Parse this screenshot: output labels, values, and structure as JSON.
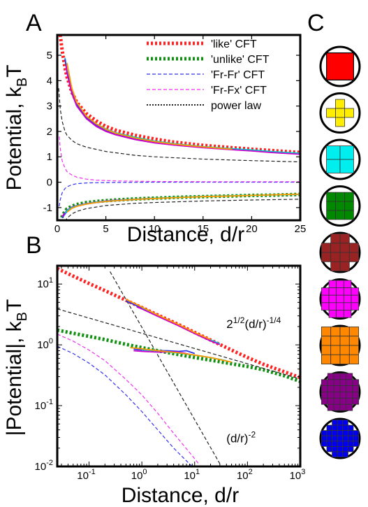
{
  "panels": {
    "A": "A",
    "B": "B",
    "C": "C"
  },
  "chart_data": [
    {
      "id": "A",
      "type": "line",
      "xlabel": "Distance, d/r",
      "ylabel": "Potential, k",
      "ylabel_sub": "B",
      "ylabel_tail": "T",
      "xlim": [
        0,
        25
      ],
      "ylim": [
        -1.5,
        5.8
      ],
      "xticks": [
        0,
        5,
        10,
        15,
        20,
        25
      ],
      "yticks": [
        -1,
        0,
        1,
        2,
        3,
        4,
        5
      ],
      "legend_position": "top-right",
      "legend": [
        {
          "label": "'like' CFT",
          "color": "#ff2020",
          "style": "dotted-thick"
        },
        {
          "label": "'unlike' CFT",
          "color": "#109010",
          "style": "dotted-thick"
        },
        {
          "label": "'Fr-Fr' CFT",
          "color": "#3333ee",
          "style": "dashed"
        },
        {
          "label": "'Fr-Fx' CFT",
          "color": "#ee33ee",
          "style": "dashed"
        },
        {
          "label": "power law",
          "color": "#222222",
          "style": "dotted"
        }
      ],
      "series": [
        {
          "name": "'like' CFT",
          "color": "#ff2020",
          "style": "dotted-thick",
          "x": [
            0.3,
            0.5,
            0.8,
            1,
            1.5,
            2,
            3,
            4,
            5,
            6,
            8,
            10,
            12,
            15,
            18,
            20,
            22,
            25
          ],
          "y": [
            5.8,
            5.2,
            4.5,
            4.15,
            3.55,
            3.15,
            2.7,
            2.42,
            2.2,
            2.05,
            1.85,
            1.7,
            1.58,
            1.45,
            1.36,
            1.3,
            1.25,
            1.17
          ]
        },
        {
          "name": "'unlike' CFT",
          "color": "#109010",
          "style": "dotted-thick",
          "x": [
            0.3,
            0.5,
            0.8,
            1,
            1.5,
            2,
            3,
            4,
            5,
            6,
            8,
            10,
            12,
            15,
            18,
            20,
            22,
            25
          ],
          "y": [
            -1.55,
            -1.35,
            -1.15,
            -1.05,
            -0.95,
            -0.88,
            -0.8,
            -0.76,
            -0.73,
            -0.7,
            -0.66,
            -0.63,
            -0.6,
            -0.57,
            -0.54,
            -0.52,
            -0.51,
            -0.48
          ]
        },
        {
          "name": "'Fr-Fr' CFT",
          "color": "#3333ee",
          "style": "dashed",
          "x": [
            0.2,
            0.3,
            0.5,
            0.8,
            1,
            1.5,
            2,
            3,
            4,
            6,
            10,
            15,
            20,
            25
          ],
          "y": [
            -0.95,
            -0.7,
            -0.42,
            -0.25,
            -0.18,
            -0.1,
            -0.06,
            -0.03,
            -0.02,
            -0.01,
            0,
            0,
            0,
            0
          ]
        },
        {
          "name": "'Fr-Fx' CFT",
          "color": "#ee33ee",
          "style": "dashed",
          "x": [
            0.2,
            0.3,
            0.5,
            0.8,
            1,
            1.5,
            2,
            3,
            4,
            6,
            10,
            15,
            20,
            25
          ],
          "y": [
            1.8,
            1.35,
            0.85,
            0.55,
            0.42,
            0.28,
            0.2,
            0.12,
            0.08,
            0.05,
            0.03,
            0.02,
            0.02,
            0.02
          ]
        },
        {
          "name": "power law",
          "color": "#222222",
          "style": "dashed",
          "x": [
            0.15,
            0.3,
            0.5,
            0.8,
            1,
            1.5,
            2,
            3,
            5,
            8,
            10,
            15,
            20,
            25
          ],
          "y": [
            3.7,
            2.9,
            2.4,
            2.0,
            1.85,
            1.65,
            1.52,
            1.38,
            1.21,
            1.06,
            1.0,
            0.91,
            0.85,
            0.8
          ]
        },
        {
          "name": "power law",
          "color": "#222222",
          "style": "dashed",
          "x": [
            0.8,
            1,
            1.5,
            2,
            3,
            5,
            8,
            10,
            15,
            20,
            25
          ],
          "y": [
            -1.55,
            -1.42,
            -1.25,
            -1.15,
            -1.04,
            -0.92,
            -0.83,
            -0.8,
            -0.74,
            -0.7,
            -0.67
          ]
        },
        {
          "name": "",
          "color": "#00cccc",
          "style": "solid",
          "x": [
            0.8,
            1,
            1.5,
            2,
            3,
            4,
            5,
            6,
            8,
            10,
            12,
            15,
            18,
            20,
            22,
            25
          ],
          "y": [
            4.9,
            4.4,
            3.6,
            3.1,
            2.6,
            2.3,
            2.1,
            1.95,
            1.77,
            1.62,
            1.52,
            1.4,
            1.32,
            1.27,
            1.21,
            1.14
          ]
        },
        {
          "name": "",
          "color": "#3333ee",
          "style": "solid",
          "x": [
            0.8,
            1,
            1.5,
            2,
            3,
            4,
            5,
            6,
            8,
            10,
            12,
            15
          ],
          "y": [
            4.85,
            4.35,
            3.55,
            3.05,
            2.55,
            2.25,
            2.05,
            1.9,
            1.72,
            1.58,
            1.48,
            1.37
          ]
        },
        {
          "name": "",
          "color": "#cc00cc",
          "style": "solid",
          "x": [
            0.9,
            1,
            1.5,
            2,
            3,
            4,
            5,
            6,
            8,
            10,
            12,
            15,
            18,
            20,
            22,
            25
          ],
          "y": [
            4.6,
            4.3,
            3.5,
            3.0,
            2.5,
            2.2,
            2.0,
            1.87,
            1.68,
            1.55,
            1.46,
            1.36,
            1.28,
            1.23,
            1.17,
            1.1
          ]
        },
        {
          "name": "",
          "color": "#ff9900",
          "style": "solid",
          "x": [
            1,
            1.5,
            2,
            3,
            4,
            5,
            6,
            8,
            10,
            12,
            15,
            18
          ],
          "y": [
            4.7,
            3.7,
            3.15,
            2.6,
            2.3,
            2.08,
            1.93,
            1.74,
            1.6,
            1.5,
            1.39,
            1.3
          ]
        },
        {
          "name": "",
          "color": "#3333ee",
          "style": "solid",
          "x": [
            0.5,
            0.8,
            1,
            1.5,
            2,
            3,
            4,
            5,
            6,
            8,
            10
          ],
          "y": [
            -1.4,
            -1.25,
            -1.15,
            -1.02,
            -0.95,
            -0.86,
            -0.8,
            -0.76,
            -0.73,
            -0.68,
            -0.64
          ]
        },
        {
          "name": "",
          "color": "#cc00cc",
          "style": "solid",
          "x": [
            0.5,
            0.8,
            1,
            1.5,
            2,
            3,
            4,
            5,
            6,
            8,
            10
          ],
          "y": [
            -1.35,
            -1.2,
            -1.1,
            -0.98,
            -0.92,
            -0.84,
            -0.78,
            -0.74,
            -0.71,
            -0.67,
            -0.63
          ]
        },
        {
          "name": "",
          "color": "#00cccc",
          "style": "solid",
          "x": [
            0.8,
            1,
            1.5,
            2,
            3,
            4,
            5,
            6,
            8,
            10,
            12,
            15,
            18,
            20,
            22,
            25
          ],
          "y": [
            -1.22,
            -1.12,
            -1.0,
            -0.93,
            -0.85,
            -0.79,
            -0.75,
            -0.72,
            -0.67,
            -0.63,
            -0.6,
            -0.56,
            -0.53,
            -0.52,
            -0.5,
            -0.48
          ]
        },
        {
          "name": "",
          "color": "#ff9900",
          "style": "solid",
          "x": [
            1,
            1.5,
            2,
            3,
            4,
            5,
            6,
            8,
            10,
            12,
            15,
            18,
            20,
            22,
            25
          ],
          "y": [
            -1.18,
            -1.03,
            -0.95,
            -0.86,
            -0.8,
            -0.76,
            -0.73,
            -0.68,
            -0.64,
            -0.61,
            -0.57,
            -0.54,
            -0.52,
            -0.5,
            -0.47
          ]
        }
      ]
    },
    {
      "id": "B",
      "type": "line",
      "xlabel": "Distance, d/r",
      "ylabel": "|Potential|, k",
      "ylabel_sub": "B",
      "ylabel_tail": "T",
      "xscale": "log",
      "yscale": "log",
      "xlim": [
        0.025,
        1000
      ],
      "ylim": [
        0.01,
        20
      ],
      "xtick_exponents": [
        -1,
        0,
        1,
        2,
        3
      ],
      "ytick_exponents": [
        -2,
        -1,
        0,
        1
      ],
      "annotations": [
        {
          "text_base": "2",
          "text_sup": "1/2",
          "text_mid": "(d/r)",
          "text_sup2": "-1/4",
          "x": 40,
          "y": 1.9
        },
        {
          "text_base": "(d/r)",
          "text_sup": "-2",
          "x": 40,
          "y": 0.025
        }
      ],
      "series": [
        {
          "name": "'like' CFT",
          "color": "#ff2020",
          "style": "dotted-thick",
          "x": [
            0.025,
            0.05,
            0.1,
            0.2,
            0.5,
            1,
            2,
            5,
            10,
            20,
            50,
            100,
            200,
            500,
            1000
          ],
          "y": [
            18,
            13.5,
            10.2,
            7.8,
            5.4,
            4.1,
            3.1,
            2.15,
            1.6,
            1.2,
            0.82,
            0.62,
            0.48,
            0.36,
            0.29
          ]
        },
        {
          "name": "'unlike' CFT",
          "color": "#109010",
          "style": "dotted-thick",
          "x": [
            0.025,
            0.05,
            0.1,
            0.2,
            0.5,
            1,
            2,
            5,
            10,
            20,
            50,
            100,
            200,
            500,
            1000
          ],
          "y": [
            1.75,
            1.55,
            1.38,
            1.22,
            1.02,
            0.9,
            0.8,
            0.69,
            0.62,
            0.56,
            0.49,
            0.44,
            0.39,
            0.31,
            0.25
          ]
        },
        {
          "name": "'Fr-Fr' CFT",
          "color": "#3333ee",
          "style": "dashed",
          "x": [
            0.025,
            0.05,
            0.1,
            0.2,
            0.5,
            1,
            2,
            4,
            8,
            12
          ],
          "y": [
            0.95,
            0.72,
            0.5,
            0.32,
            0.15,
            0.08,
            0.04,
            0.02,
            0.011,
            0.008
          ]
        },
        {
          "name": "'Fr-Fx' CFT",
          "color": "#ee33ee",
          "style": "dashed",
          "x": [
            0.025,
            0.05,
            0.1,
            0.2,
            0.5,
            1,
            2,
            4,
            8,
            12
          ],
          "y": [
            1.5,
            1.15,
            0.82,
            0.55,
            0.27,
            0.15,
            0.075,
            0.035,
            0.017,
            0.011
          ]
        },
        {
          "name": "power law",
          "color": "#222222",
          "style": "dashed",
          "x": [
            0.025,
            1000
          ],
          "y": [
            3.9,
            0.275
          ]
        },
        {
          "name": "power law",
          "color": "#222222",
          "style": "dashed",
          "x": [
            0.25,
            30
          ],
          "y": [
            16,
            0.0111
          ]
        },
        {
          "name": "",
          "color": "#3333ee",
          "style": "solid",
          "x": [
            0.5,
            1,
            2,
            5,
            10,
            15
          ],
          "y": [
            5.3,
            4.0,
            3.0,
            2.1,
            1.55,
            1.35
          ]
        },
        {
          "name": "",
          "color": "#00cccc",
          "style": "solid",
          "x": [
            1,
            2,
            5,
            10,
            20,
            30
          ],
          "y": [
            4.1,
            3.05,
            2.12,
            1.58,
            1.2,
            1.05
          ]
        },
        {
          "name": "",
          "color": "#cc00cc",
          "style": "solid",
          "x": [
            0.8,
            1,
            2,
            5,
            10,
            20,
            30
          ],
          "y": [
            4.2,
            3.9,
            2.95,
            2.05,
            1.53,
            1.16,
            1.01
          ]
        },
        {
          "name": "",
          "color": "#ff9900",
          "style": "solid",
          "x": [
            0.5,
            1,
            2,
            5,
            10,
            20
          ],
          "y": [
            5.6,
            4.2,
            3.1,
            2.15,
            1.6,
            1.22
          ]
        },
        {
          "name": "",
          "color": "#3333ee",
          "style": "solid",
          "x": [
            0.7,
            1,
            2,
            3,
            5,
            7,
            10
          ],
          "y": [
            0.85,
            0.82,
            0.8,
            0.8,
            0.78,
            0.8,
            0.72
          ]
        },
        {
          "name": "",
          "color": "#00cccc",
          "style": "solid",
          "x": [
            1,
            2,
            5,
            10,
            20,
            40
          ],
          "y": [
            0.84,
            0.79,
            0.73,
            0.68,
            0.62,
            0.55
          ]
        },
        {
          "name": "",
          "color": "#cc00cc",
          "style": "solid",
          "x": [
            0.7,
            1,
            2,
            4,
            6,
            8
          ],
          "y": [
            0.8,
            0.78,
            0.76,
            0.77,
            0.74,
            0.7
          ]
        },
        {
          "name": "",
          "color": "#ff9900",
          "style": "solid",
          "x": [
            0.6,
            1,
            2,
            5,
            10,
            20,
            50
          ],
          "y": [
            0.9,
            0.86,
            0.8,
            0.74,
            0.68,
            0.62,
            0.52
          ]
        }
      ]
    }
  ],
  "shapes": [
    {
      "id": "square",
      "color": "#ff0000"
    },
    {
      "id": "plus-4",
      "color": "#ffee00"
    },
    {
      "id": "square-4",
      "color": "#00eeee"
    },
    {
      "id": "square-9",
      "color": "#008800"
    },
    {
      "id": "cross-12",
      "color": "#992222"
    },
    {
      "id": "cross-21",
      "color": "#ff00ff"
    },
    {
      "id": "square-16",
      "color": "#ff8800"
    },
    {
      "id": "cross-32",
      "color": "#880088"
    },
    {
      "id": "circle-37",
      "color": "#0000ee"
    }
  ]
}
